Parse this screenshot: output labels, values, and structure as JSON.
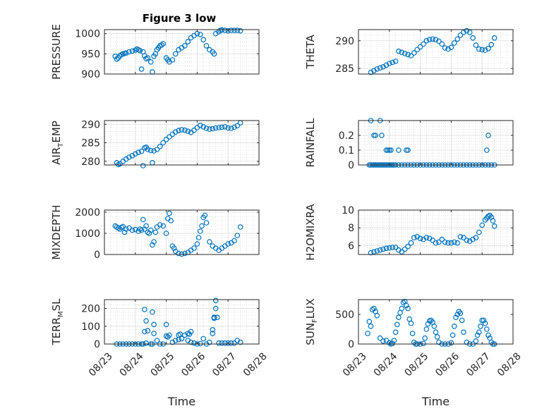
{
  "figure": {
    "title": "Figure 3 low"
  },
  "chart_data": [
    {
      "type": "scatter",
      "ylabel": "PRESSURE",
      "title": "Figure 3 low",
      "ylim": [
        900,
        1010
      ],
      "yticks": [
        900,
        950,
        1000
      ],
      "ytick_labels": [
        "900",
        "950",
        "1000"
      ],
      "xlim": [
        0,
        5
      ],
      "xtick_labels": [],
      "xlabel": "",
      "grid": true,
      "x": [
        0.35,
        0.4,
        0.45,
        0.5,
        0.55,
        0.6,
        0.65,
        0.7,
        0.8,
        0.9,
        1.0,
        1.05,
        1.1,
        1.15,
        1.2,
        1.25,
        1.3,
        1.35,
        1.4,
        1.5,
        1.55,
        1.6,
        1.65,
        1.7,
        1.75,
        1.8,
        1.85,
        1.9,
        2.0,
        2.05,
        2.1,
        2.2,
        2.3,
        2.4,
        2.5,
        2.6,
        2.7,
        2.8,
        2.9,
        3.0,
        3.1,
        3.2,
        3.3,
        3.4,
        3.5,
        3.55,
        3.6,
        3.7,
        3.75,
        3.8,
        3.9,
        4.0,
        4.1,
        4.2,
        4.3,
        4.4
      ],
      "y": [
        944,
        937,
        940,
        945,
        948,
        950,
        951,
        952,
        955,
        957,
        959,
        962,
        960,
        958,
        912,
        955,
        945,
        938,
        940,
        930,
        905,
        944,
        950,
        960,
        965,
        970,
        972,
        975,
        940,
        935,
        930,
        935,
        950,
        960,
        965,
        970,
        980,
        990,
        995,
        1000,
        998,
        985,
        970,
        960,
        955,
        950,
        1000,
        1005,
        1008,
        1009,
        1008,
        1007,
        1008,
        1008,
        1008,
        1007
      ]
    },
    {
      "type": "scatter",
      "ylabel": "THETA",
      "ylim": [
        284,
        292
      ],
      "yticks": [
        285,
        290
      ],
      "ytick_labels": [
        "285",
        "290"
      ],
      "xlim": [
        0,
        5
      ],
      "xtick_labels": [],
      "xlabel": "",
      "grid": true,
      "x": [
        0.4,
        0.5,
        0.6,
        0.7,
        0.8,
        0.9,
        1.0,
        1.1,
        1.2,
        1.3,
        1.4,
        1.5,
        1.6,
        1.7,
        1.8,
        1.9,
        2.0,
        2.1,
        2.2,
        2.3,
        2.4,
        2.5,
        2.6,
        2.7,
        2.8,
        2.9,
        3.0,
        3.1,
        3.2,
        3.3,
        3.4,
        3.5,
        3.6,
        3.7,
        3.8,
        3.9,
        4.0,
        4.1,
        4.2,
        4.3,
        4.4
      ],
      "y": [
        284.3,
        284.6,
        284.9,
        285.1,
        285.3,
        285.6,
        285.9,
        286.1,
        286.3,
        288.1,
        287.9,
        287.7,
        287.5,
        287.3,
        287.8,
        288.4,
        288.9,
        289.4,
        290.0,
        290.2,
        290.3,
        290.2,
        289.9,
        289.4,
        288.7,
        288.5,
        288.8,
        289.6,
        290.3,
        291.0,
        291.5,
        291.8,
        291.5,
        290.5,
        289.2,
        288.5,
        288.4,
        288.3,
        288.6,
        289.3,
        290.5
      ]
    },
    {
      "type": "scatter",
      "ylabel": "AIR_T_EMP",
      "ylim": [
        279,
        291
      ],
      "yticks": [
        280,
        285,
        290
      ],
      "ytick_labels": [
        "280",
        "285",
        "290"
      ],
      "xlim": [
        0,
        5
      ],
      "xtick_labels": [],
      "xlabel": "",
      "grid": true,
      "x": [
        0.4,
        0.45,
        0.5,
        0.6,
        0.7,
        0.8,
        0.9,
        1.0,
        1.1,
        1.2,
        1.25,
        1.3,
        1.35,
        1.4,
        1.5,
        1.55,
        1.6,
        1.7,
        1.8,
        1.9,
        2.0,
        2.1,
        2.2,
        2.3,
        2.4,
        2.5,
        2.6,
        2.7,
        2.8,
        2.9,
        3.0,
        3.1,
        3.2,
        3.3,
        3.4,
        3.5,
        3.6,
        3.7,
        3.8,
        3.9,
        4.0,
        4.1,
        4.2,
        4.3,
        4.4
      ],
      "y": [
        279.6,
        279.1,
        279.3,
        280.0,
        280.6,
        281.1,
        281.5,
        282.0,
        282.4,
        282.7,
        278.8,
        283.6,
        283.8,
        283.2,
        282.9,
        279.6,
        282.8,
        283.2,
        284.0,
        285.0,
        285.9,
        286.6,
        287.3,
        287.9,
        288.3,
        288.5,
        288.4,
        288.1,
        287.8,
        288.4,
        289.1,
        289.7,
        289.3,
        288.9,
        288.7,
        288.8,
        289.0,
        289.1,
        289.2,
        289.3,
        289.0,
        288.9,
        289.2,
        289.6,
        290.4
      ]
    },
    {
      "type": "scatter",
      "ylabel": "RAINFALL",
      "ylim": [
        0,
        0.3
      ],
      "yticks": [
        0,
        0.1,
        0.2
      ],
      "ytick_labels": [
        "0",
        "0.1",
        "0.2"
      ],
      "xlim": [
        0,
        5
      ],
      "xtick_labels": [],
      "xlabel": "",
      "grid": true,
      "x": [
        0.35,
        0.4,
        0.45,
        0.5,
        0.55,
        0.6,
        0.65,
        0.7,
        0.75,
        0.8,
        0.85,
        0.9,
        0.95,
        1.0,
        1.05,
        1.1,
        1.15,
        1.2,
        1.3,
        1.4,
        1.5,
        1.6,
        1.7,
        1.8,
        1.9,
        2.0,
        2.1,
        2.2,
        2.3,
        2.4,
        2.5,
        2.6,
        2.7,
        2.8,
        2.9,
        3.0,
        3.1,
        3.2,
        3.3,
        3.4,
        3.5,
        3.6,
        3.7,
        3.8,
        3.9,
        4.0,
        4.1,
        4.2,
        4.3,
        4.4,
        0.4,
        0.5,
        0.7,
        0.55,
        0.75,
        0.9,
        0.95,
        1.0,
        1.05,
        1.3,
        1.55,
        1.6,
        4.15,
        4.2
      ],
      "y": [
        0,
        0,
        0,
        0,
        0,
        0,
        0,
        0,
        0,
        0,
        0,
        0,
        0,
        0,
        0,
        0,
        0,
        0,
        0,
        0,
        0,
        0,
        0,
        0,
        0,
        0,
        0,
        0,
        0,
        0,
        0,
        0,
        0,
        0,
        0,
        0,
        0,
        0,
        0,
        0,
        0,
        0,
        0,
        0,
        0,
        0,
        0,
        0,
        0,
        0,
        0.3,
        0.2,
        0.3,
        0.2,
        0.2,
        0.1,
        0.1,
        0.1,
        0.1,
        0.1,
        0.1,
        0.1,
        0.1,
        0.2
      ]
    },
    {
      "type": "scatter",
      "ylabel": "MIXDEPTH",
      "ylim": [
        0,
        2100
      ],
      "yticks": [
        0,
        1000,
        2000
      ],
      "ytick_labels": [
        "0",
        "1000",
        "2000"
      ],
      "xlim": [
        0,
        5
      ],
      "xtick_labels": [],
      "xlabel": "",
      "grid": true,
      "x": [
        0.35,
        0.4,
        0.45,
        0.5,
        0.55,
        0.6,
        0.65,
        0.7,
        0.8,
        0.9,
        1.0,
        1.1,
        1.15,
        1.2,
        1.25,
        1.3,
        1.35,
        1.4,
        1.45,
        1.5,
        1.55,
        1.6,
        1.65,
        1.7,
        1.8,
        1.9,
        2.0,
        2.05,
        2.1,
        2.15,
        2.2,
        2.25,
        2.3,
        2.4,
        2.5,
        2.6,
        2.7,
        2.8,
        2.9,
        3.0,
        3.05,
        3.1,
        3.15,
        3.2,
        3.25,
        3.3,
        3.4,
        3.5,
        3.6,
        3.7,
        3.8,
        3.9,
        4.0,
        4.1,
        4.2,
        4.3,
        4.4
      ],
      "y": [
        1350,
        1300,
        1250,
        1200,
        1280,
        1320,
        1050,
        1200,
        1250,
        1150,
        1180,
        1100,
        1200,
        1150,
        1650,
        1200,
        1350,
        1050,
        1000,
        1150,
        450,
        600,
        1050,
        1300,
        1400,
        1350,
        1000,
        1700,
        1950,
        1600,
        400,
        300,
        150,
        50,
        20,
        50,
        100,
        200,
        300,
        500,
        800,
        1100,
        1350,
        1750,
        1850,
        1500,
        600,
        400,
        300,
        200,
        300,
        400,
        500,
        550,
        650,
        900,
        1300
      ]
    },
    {
      "type": "scatter",
      "ylabel": "H2OMIXRA",
      "ylim": [
        5,
        10
      ],
      "yticks": [
        6,
        8,
        10
      ],
      "ytick_labels": [
        "6",
        "8",
        "10"
      ],
      "xlim": [
        0,
        5
      ],
      "xtick_labels": [],
      "xlabel": "",
      "grid": true,
      "x": [
        0.4,
        0.5,
        0.6,
        0.7,
        0.8,
        0.9,
        1.0,
        1.1,
        1.2,
        1.3,
        1.4,
        1.5,
        1.6,
        1.7,
        1.8,
        1.9,
        2.0,
        2.1,
        2.2,
        2.3,
        2.4,
        2.5,
        2.6,
        2.7,
        2.8,
        2.9,
        3.0,
        3.1,
        3.2,
        3.3,
        3.4,
        3.5,
        3.6,
        3.7,
        3.8,
        3.9,
        4.0,
        4.1,
        4.15,
        4.2,
        4.25,
        4.3,
        4.35,
        4.4
      ],
      "y": [
        5.2,
        5.3,
        5.4,
        5.5,
        5.6,
        5.7,
        5.75,
        5.8,
        5.8,
        5.5,
        5.3,
        5.6,
        5.9,
        6.3,
        6.9,
        7.0,
        6.8,
        6.7,
        6.9,
        6.8,
        6.6,
        6.3,
        6.4,
        6.7,
        6.4,
        6.3,
        6.3,
        6.4,
        6.3,
        7.0,
        6.9,
        6.6,
        6.5,
        6.7,
        6.9,
        7.5,
        8.3,
        8.9,
        9.1,
        9.3,
        9.4,
        9.2,
        8.8,
        8.2
      ]
    },
    {
      "type": "scatter",
      "ylabel": "TERR_M_SL",
      "ylim": [
        0,
        250
      ],
      "yticks": [
        0,
        100,
        200
      ],
      "ytick_labels": [
        "0",
        "100",
        "200"
      ],
      "xlim": [
        0,
        5
      ],
      "xtick_labels": [],
      "xlabel": "",
      "grid": true,
      "x": [
        0.4,
        0.5,
        0.6,
        0.7,
        0.8,
        0.9,
        1.0,
        1.1,
        1.2,
        1.25,
        1.3,
        1.35,
        1.4,
        1.5,
        1.55,
        1.6,
        1.7,
        1.8,
        1.9,
        2.0,
        2.1,
        2.2,
        2.3,
        2.4,
        2.5,
        2.6,
        2.7,
        2.8,
        2.9,
        3.0,
        3.1,
        3.2,
        3.3,
        3.4,
        3.5,
        3.55,
        3.6,
        3.65,
        3.7,
        3.8,
        3.9,
        4.0,
        4.1,
        4.2,
        4.3,
        4.4,
        1.3,
        1.35,
        1.55,
        1.6,
        2.0,
        2.05,
        2.4,
        2.45,
        2.7,
        2.75,
        2.8,
        3.5,
        3.55,
        3.6,
        3.55
      ],
      "y": [
        0,
        0,
        0,
        0,
        0,
        0,
        0,
        0,
        0,
        0,
        70,
        5,
        75,
        0,
        0,
        60,
        20,
        0,
        0,
        45,
        50,
        10,
        20,
        25,
        30,
        50,
        20,
        10,
        5,
        0,
        2,
        30,
        0,
        10,
        80,
        150,
        200,
        150,
        5,
        5,
        5,
        5,
        5,
        5,
        20,
        10,
        195,
        130,
        180,
        110,
        110,
        40,
        50,
        55,
        60,
        55,
        70,
        60,
        145,
        245,
        150
      ]
    },
    {
      "type": "scatter",
      "ylabel": "SUN_F_LUX",
      "ylim": [
        0,
        750
      ],
      "yticks": [
        0,
        500
      ],
      "ytick_labels": [
        "0",
        "500"
      ],
      "xlim": [
        0,
        5
      ],
      "xtick_labels": [
        "08/23",
        "08/24",
        "08/25",
        "08/26",
        "08/27",
        "08/28"
      ],
      "xlabel": "Time",
      "grid": false,
      "x": [
        0.3,
        0.35,
        0.4,
        0.45,
        0.5,
        0.55,
        0.6,
        0.7,
        0.8,
        0.9,
        1.0,
        1.05,
        1.1,
        1.15,
        1.2,
        1.25,
        1.3,
        1.35,
        1.4,
        1.45,
        1.5,
        1.55,
        1.6,
        1.65,
        1.7,
        1.75,
        1.8,
        1.85,
        1.9,
        2.0,
        2.1,
        2.15,
        2.2,
        2.25,
        2.3,
        2.35,
        2.4,
        2.45,
        2.5,
        2.55,
        2.6,
        2.7,
        2.8,
        2.9,
        3.0,
        3.05,
        3.1,
        3.15,
        3.2,
        3.25,
        3.3,
        3.35,
        3.4,
        3.5,
        3.6,
        3.7,
        3.8,
        3.85,
        3.9,
        3.95,
        4.0,
        4.05,
        4.1,
        4.15,
        4.2,
        4.25,
        4.3,
        4.35,
        4.4
      ],
      "y": [
        180,
        380,
        300,
        580,
        600,
        550,
        480,
        100,
        50,
        60,
        20,
        0,
        10,
        60,
        200,
        330,
        450,
        530,
        600,
        700,
        720,
        650,
        600,
        420,
        350,
        180,
        30,
        0,
        0,
        0,
        10,
        100,
        250,
        340,
        390,
        400,
        370,
        300,
        200,
        120,
        30,
        0,
        0,
        0,
        20,
        150,
        300,
        450,
        500,
        550,
        520,
        400,
        200,
        30,
        0,
        0,
        50,
        150,
        200,
        300,
        400,
        400,
        350,
        250,
        150,
        100,
        30,
        0,
        0
      ]
    }
  ]
}
